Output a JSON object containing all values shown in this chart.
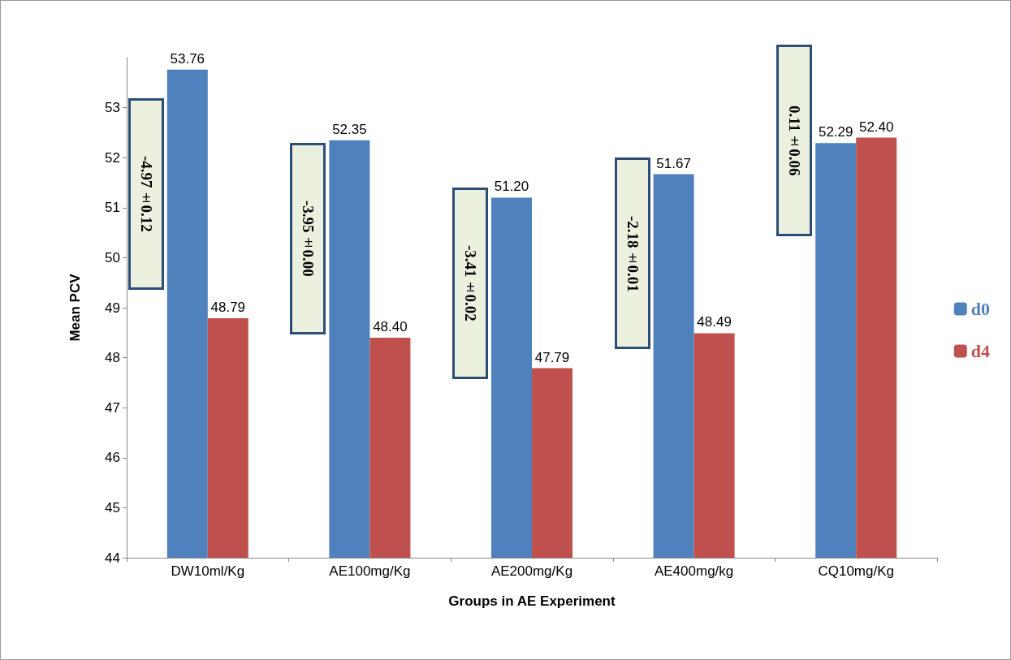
{
  "chart_data": {
    "type": "bar",
    "xlabel": "Groups in AE Experiment",
    "ylabel": "Mean PCV",
    "categories": [
      "DW10ml/Kg",
      "AE100mg/Kg",
      "AE200mg/Kg",
      "AE400mg/kg",
      "CQ10mg/Kg"
    ],
    "series": [
      {
        "name": "d0",
        "color": "#4f81bd",
        "values": [
          53.76,
          52.35,
          51.2,
          51.67,
          52.29
        ],
        "value_labels": [
          "53.76",
          "52.35",
          "51.20",
          "51.67",
          "52.29"
        ]
      },
      {
        "name": "d4",
        "color": "#c0504d",
        "values": [
          48.79,
          48.4,
          47.79,
          48.49,
          52.4
        ],
        "value_labels": [
          "48.79",
          "48.40",
          "47.79",
          "48.49",
          "52.40"
        ]
      }
    ],
    "ylim": [
      44,
      54
    ],
    "yticks": [
      44,
      45,
      46,
      47,
      48,
      49,
      50,
      51,
      52,
      53
    ],
    "grid": false,
    "legend": "right",
    "annotations": [
      "-4.97±0.12",
      "-3.95±0.00",
      "-3.41±0.02",
      "-2.18±0.01",
      "0.11±0.06"
    ]
  }
}
